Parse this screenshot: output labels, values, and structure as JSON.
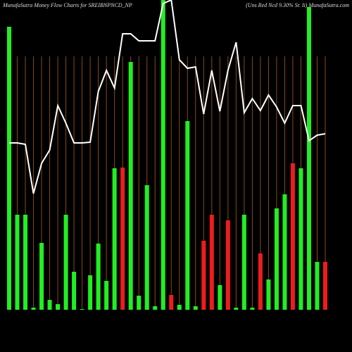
{
  "chart_data": {
    "type": "bar",
    "title": "MunafaSutra  Money Flow  Charts for SREIBNPNCD_NP",
    "subtitle": "(Uns Red Ncd 9.30% Sr. Ii) MunafaSutra.com",
    "categories": [
      null,
      null,
      null,
      null,
      null,
      null,
      null,
      null,
      null,
      null,
      null,
      null,
      null,
      null,
      null,
      null,
      null,
      null,
      null,
      null,
      null,
      null,
      null,
      null,
      null,
      null,
      null,
      null,
      null,
      null,
      null,
      null,
      null,
      null,
      null,
      null,
      null,
      null,
      null,
      null
    ],
    "ylim": [
      0,
      440
    ],
    "grid_color": "#8b4a14",
    "series": [
      {
        "type": "bar",
        "values": [
          402,
          135,
          135,
          3,
          95,
          14,
          8,
          135,
          54,
          1,
          49,
          94,
          41,
          201,
          202,
          352,
          20,
          177,
          5,
          440,
          21,
          7,
          268,
          5,
          98,
          135,
          35,
          127,
          3,
          135,
          3,
          80,
          43,
          144,
          164,
          208,
          201,
          430,
          68,
          68
        ],
        "colors": [
          "#22ee22",
          "#22ee22",
          "#22ee22",
          "#22ee22",
          "#22ee22",
          "#22ee22",
          "#22ee22",
          "#22ee22",
          "#22ee22",
          "#22ee22",
          "#22ee22",
          "#22ee22",
          "#22ee22",
          "#22ee22",
          "#ee1c1c",
          "#22ee22",
          "#22ee22",
          "#22ee22",
          "#22ee22",
          "#22ee22",
          "#ee1c1c",
          "#22ee22",
          "#22ee22",
          "#22ee22",
          "#ee1c1c",
          "#ee1c1c",
          "#22ee22",
          "#ee1c1c",
          "#22ee22",
          "#22ee22",
          "#22ee22",
          "#ee1c1c",
          "#22ee22",
          "#22ee22",
          "#22ee22",
          "#ee1c1c",
          "#22ee22",
          "#22ee22",
          "#22ee22",
          "#ee1c1c"
        ]
      },
      {
        "type": "line",
        "color": "#ffffff",
        "values": [
          237,
          237,
          235,
          165,
          208,
          227,
          290,
          265,
          237,
          237,
          238,
          310,
          340,
          315,
          392,
          392,
          382,
          382,
          382,
          435,
          440,
          355,
          343,
          345,
          278,
          340,
          282,
          340,
          380,
          280,
          300,
          283,
          305,
          288,
          265,
          290,
          290,
          240,
          248,
          250
        ]
      }
    ]
  }
}
